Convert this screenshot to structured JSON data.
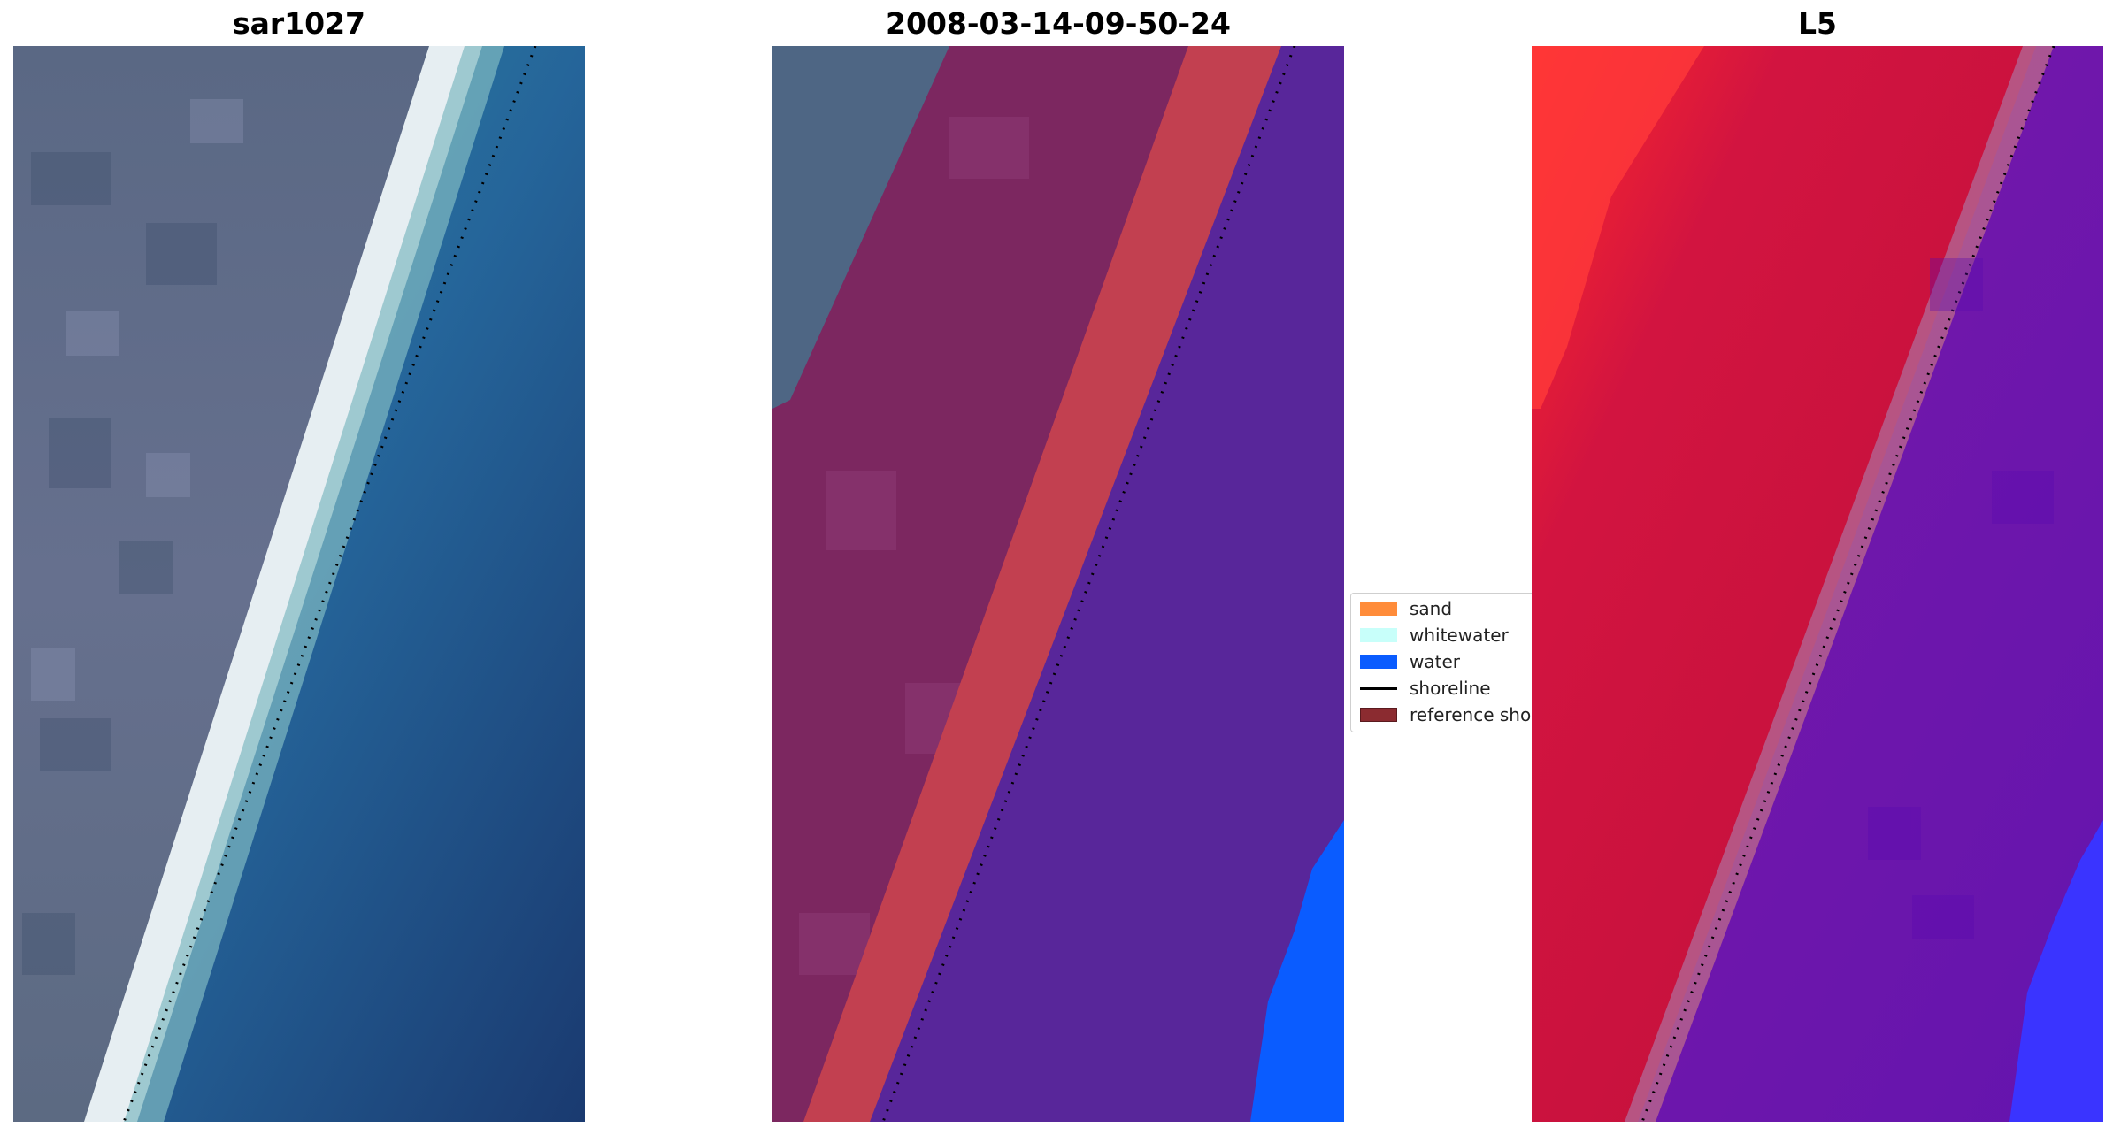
{
  "panels": [
    {
      "title": "sar1027"
    },
    {
      "title": "2008-03-14-09-50-24"
    },
    {
      "title": "L5"
    }
  ],
  "legend": {
    "items": [
      {
        "label": "sand",
        "color": "#ff8c3a",
        "kind": "patch"
      },
      {
        "label": "whitewater",
        "color": "#c8fffa",
        "kind": "patch"
      },
      {
        "label": "water",
        "color": "#0a5cff",
        "kind": "patch"
      },
      {
        "label": "shoreline",
        "color": "#000000",
        "kind": "line"
      },
      {
        "label": "reference shoreline",
        "color": "#8b2b30",
        "kind": "patch"
      }
    ]
  },
  "colors": {
    "land_gray": "#5e6a86",
    "sea_blue": "#27608e",
    "classified_land": "#7c2760",
    "classified_sand": "#c24050",
    "classified_water": "#58269a",
    "water_blue": "#0a5cff",
    "index_red": "#c61237",
    "index_purple": "#6b18a8"
  }
}
